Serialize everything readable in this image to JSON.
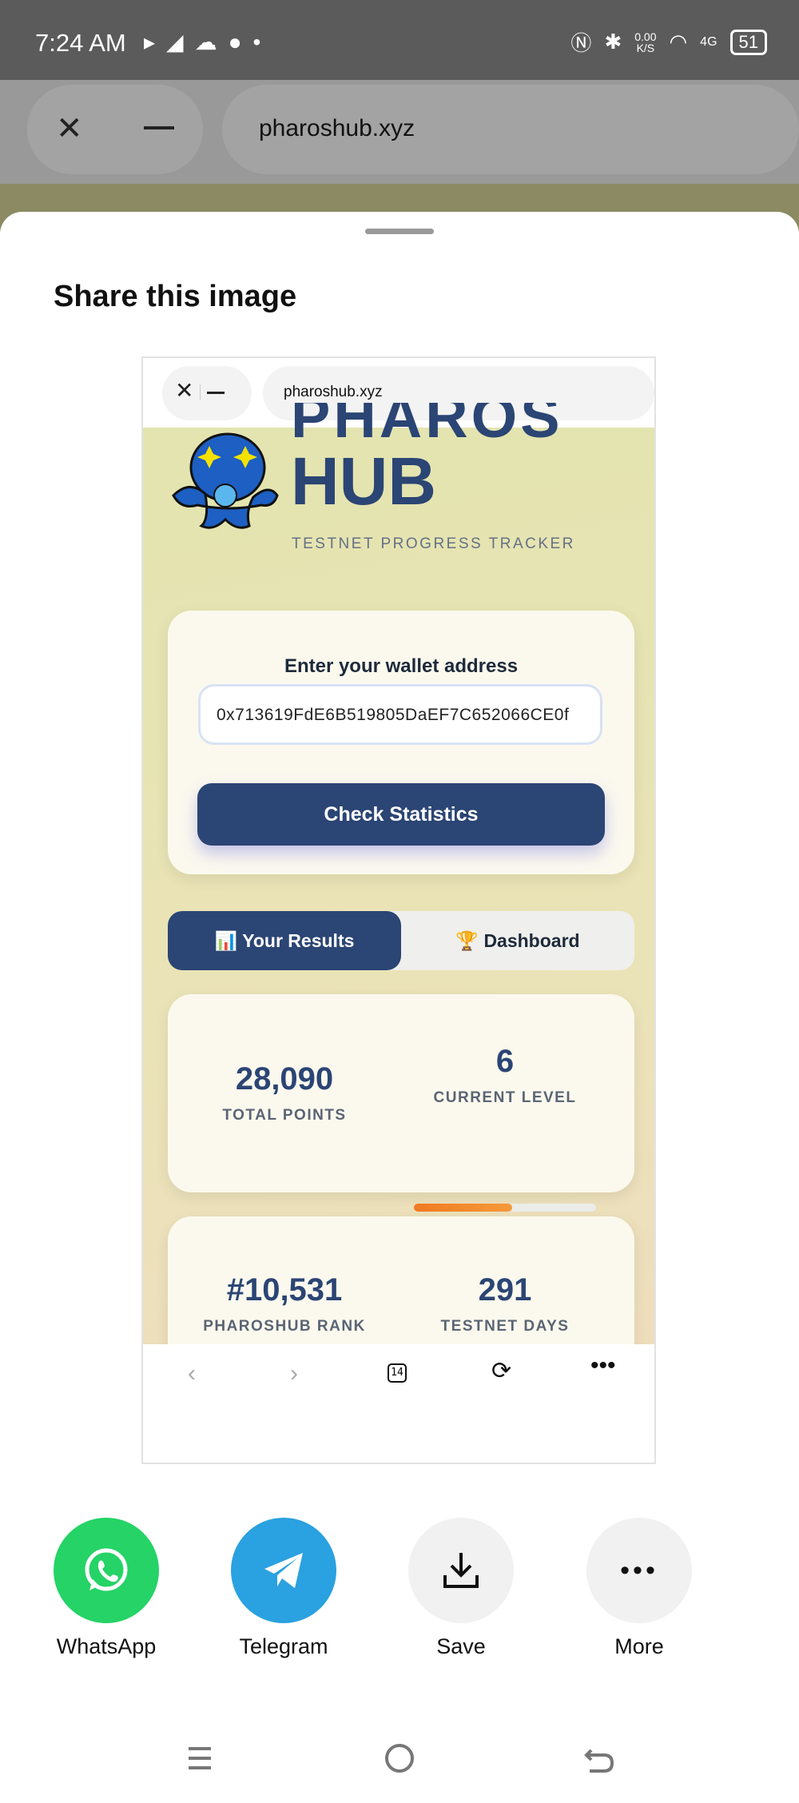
{
  "status_bar": {
    "time": "7:24 AM",
    "net_speed": "0.00",
    "net_unit": "K/S",
    "network": "4G",
    "battery": "51"
  },
  "background_browser": {
    "url": "pharoshub.xyz"
  },
  "sheet": {
    "title": "Share this image"
  },
  "preview": {
    "url": "pharoshub.xyz",
    "logo": {
      "top": "PHAROS",
      "bottom": "HUB"
    },
    "tagline": "TESTNET PROGRESS TRACKER",
    "wallet": {
      "label": "Enter your wallet address",
      "value": "0x713619FdE6B519805DaEF7C652066CE0f",
      "button": "Check Statistics"
    },
    "tabs": [
      {
        "icon": "📊",
        "label": "Your Results",
        "active": true
      },
      {
        "icon": "🏆",
        "label": "Dashboard",
        "active": false
      }
    ],
    "stats1": {
      "total_points": "28,090",
      "total_points_label": "TOTAL POINTS",
      "level": "6",
      "level_label": "CURRENT LEVEL",
      "level_progress": 0.54
    },
    "stats2": {
      "rank": "#10,531",
      "rank_label": "PHAROSHUB RANK",
      "days": "291",
      "days_label": "TESTNET DAYS"
    },
    "toolbar": {
      "tab_count": "14"
    },
    "accent": "#2b4574",
    "progress_color": "#f07a22"
  },
  "share_targets": [
    {
      "label": "WhatsApp",
      "color": "#25d366"
    },
    {
      "label": "Telegram",
      "color": "#2aa1e0"
    },
    {
      "label": "Save",
      "color": "#f1f1f1"
    },
    {
      "label": "More",
      "color": "#f1f1f1"
    }
  ]
}
